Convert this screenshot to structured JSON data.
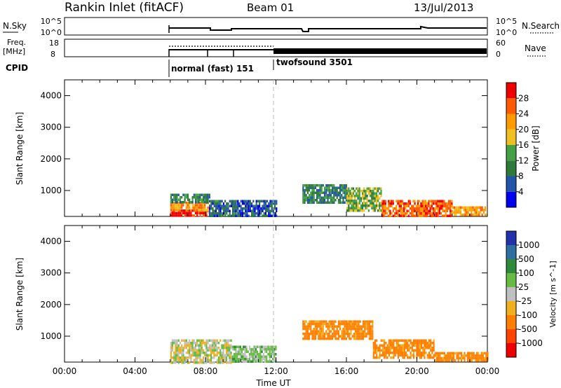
{
  "header": {
    "station": "Rankin Inlet (fitACF)",
    "beam": "Beam 01",
    "date": "13/Jul/2013"
  },
  "top_panels": {
    "nsky_label": "N.Sky",
    "nsky_ticks": [
      "10^5",
      "10^0"
    ],
    "nsearch_label": "N.Search",
    "nsearch_ticks": [
      "10^5",
      "10^0"
    ],
    "freq_label_1": "Freq.",
    "freq_label_2": "[MHz]",
    "freq_ticks": [
      "18",
      "8"
    ],
    "nave_label": "Nave",
    "nave_ticks": [
      "60",
      "0"
    ],
    "cpid_label": "CPID",
    "modes": [
      {
        "name": "normal (fast) 151",
        "start_hour": 6,
        "end_hour": 12
      },
      {
        "name": "twofsound 3501",
        "start_hour": 12,
        "end_hour": 24
      }
    ]
  },
  "colors": {
    "power": [
      "#0000ee",
      "#2255aa",
      "#2e7a3a",
      "#44a044",
      "#f0c020",
      "#ff9a00",
      "#ff5a00",
      "#ee0000"
    ],
    "velocity": [
      "#2233aa",
      "#2e6ea0",
      "#2e8a3a",
      "#66bb44",
      "#c0c0c0",
      "#f0b020",
      "#ff8000",
      "#ff4400",
      "#ee0000"
    ]
  },
  "chart_data": [
    {
      "type": "heatmap",
      "title": "",
      "xlabel": "",
      "ylabel": "Slant Range [km]",
      "xlim": [
        0,
        24
      ],
      "ylim": [
        180,
        4500
      ],
      "yticks": [
        "1000",
        "2000",
        "3000",
        "4000"
      ],
      "colorbar_label": "Power [dB]",
      "colorbar_ticks": [
        "4",
        "8",
        "12",
        "16",
        "20",
        "24",
        "28"
      ],
      "colorbar_range": [
        0,
        32
      ],
      "data_blocks": [
        {
          "t0": 6.0,
          "t1": 8.2,
          "r0": 200,
          "r1": 400,
          "value": 30
        },
        {
          "t0": 6.0,
          "t1": 8.2,
          "r0": 400,
          "r1": 650,
          "value": 22
        },
        {
          "t0": 6.0,
          "t1": 8.2,
          "r0": 650,
          "r1": 900,
          "value": 10
        },
        {
          "t0": 8.2,
          "t1": 9.8,
          "r0": 200,
          "r1": 700,
          "value": 8
        },
        {
          "t0": 9.8,
          "t1": 12.0,
          "r0": 200,
          "r1": 700,
          "value": 6
        },
        {
          "t0": 13.5,
          "t1": 16.0,
          "r0": 600,
          "r1": 1200,
          "value": 10
        },
        {
          "t0": 16.0,
          "t1": 18.0,
          "r0": 400,
          "r1": 1100,
          "value": 14
        },
        {
          "t0": 18.0,
          "t1": 22.0,
          "r0": 200,
          "r1": 700,
          "value": 26
        },
        {
          "t0": 22.0,
          "t1": 24.0,
          "r0": 200,
          "r1": 500,
          "value": 22
        }
      ]
    },
    {
      "type": "heatmap",
      "title": "",
      "xlabel": "Time UT",
      "ylabel": "Slant Range [km]",
      "xlim": [
        0,
        24
      ],
      "ylim": [
        180,
        4500
      ],
      "xticks": [
        "00:00",
        "04:00",
        "08:00",
        "12:00",
        "16:00",
        "20:00",
        "00:00"
      ],
      "yticks": [
        "1000",
        "2000",
        "3000",
        "4000"
      ],
      "colorbar_label": "Velocity [m s^-1]",
      "colorbar_ticks": [
        "1000",
        "500",
        "100",
        "25",
        "-25",
        "-100",
        "-500",
        "-1000"
      ],
      "data_blocks": [
        {
          "t0": 6.0,
          "t1": 9.5,
          "r0": 200,
          "r1": 900,
          "value": 0
        },
        {
          "t0": 9.5,
          "t1": 12.0,
          "r0": 200,
          "r1": 700,
          "value": 50
        },
        {
          "t0": 13.5,
          "t1": 17.5,
          "r0": 900,
          "r1": 1500,
          "value": -150
        },
        {
          "t0": 17.5,
          "t1": 21.0,
          "r0": 300,
          "r1": 900,
          "value": -150
        },
        {
          "t0": 21.0,
          "t1": 24.0,
          "r0": 200,
          "r1": 500,
          "value": -150
        }
      ]
    }
  ]
}
